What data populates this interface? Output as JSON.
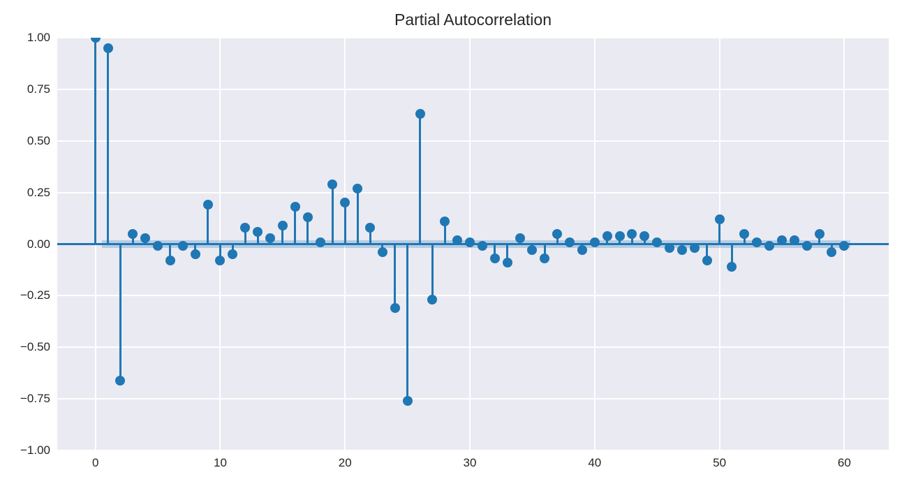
{
  "title": "Partial Autocorrelation",
  "colors": {
    "accent": "#1f77b4",
    "axes_background": "#eaeaf2",
    "gridline": "#ffffff",
    "text": "#262626",
    "confidence_band": "rgba(31,119,180,0.25)"
  },
  "chart_data": {
    "type": "stem",
    "title": "Partial Autocorrelation",
    "xlabel": "",
    "ylabel": "",
    "grid": true,
    "legend": false,
    "xlim": [
      -3.06,
      63.56
    ],
    "ylim": [
      -1.0,
      1.0
    ],
    "confidence_band": {
      "half_width": 0.017,
      "x_start": 0.5,
      "x_end": 60.5
    },
    "xticks": [
      {
        "label": "0",
        "value": 0
      },
      {
        "label": "10",
        "value": 10
      },
      {
        "label": "20",
        "value": 20
      },
      {
        "label": "30",
        "value": 30
      },
      {
        "label": "40",
        "value": 40
      },
      {
        "label": "50",
        "value": 50
      },
      {
        "label": "60",
        "value": 60
      }
    ],
    "yticks": [
      {
        "label": "1.00",
        "value": 1.0
      },
      {
        "label": "0.75",
        "value": 0.75
      },
      {
        "label": "0.50",
        "value": 0.5
      },
      {
        "label": "0.25",
        "value": 0.25
      },
      {
        "label": "0.00",
        "value": 0.0
      },
      {
        "label": "−0.25",
        "value": -0.25
      },
      {
        "label": "−0.50",
        "value": -0.5
      },
      {
        "label": "−0.75",
        "value": -0.75
      },
      {
        "label": "−1.00",
        "value": -1.0
      }
    ],
    "x": [
      0,
      1,
      2,
      3,
      4,
      5,
      6,
      7,
      8,
      9,
      10,
      11,
      12,
      13,
      14,
      15,
      16,
      17,
      18,
      19,
      20,
      21,
      22,
      23,
      24,
      25,
      26,
      27,
      28,
      29,
      30,
      31,
      32,
      33,
      34,
      35,
      36,
      37,
      38,
      39,
      40,
      41,
      42,
      43,
      44,
      45,
      46,
      47,
      48,
      49,
      50,
      51,
      52,
      53,
      54,
      55,
      56,
      57,
      58,
      59,
      60
    ],
    "values": [
      1.0,
      0.95,
      -0.66,
      0.05,
      0.03,
      -0.01,
      -0.08,
      -0.01,
      -0.05,
      0.19,
      -0.08,
      -0.05,
      0.08,
      0.06,
      0.03,
      0.09,
      0.18,
      0.13,
      0.01,
      0.29,
      0.2,
      0.27,
      0.08,
      -0.04,
      -0.31,
      -0.76,
      0.63,
      -0.27,
      0.11,
      0.02,
      0.01,
      -0.01,
      -0.07,
      -0.09,
      0.03,
      -0.03,
      -0.07,
      0.05,
      0.01,
      -0.03,
      0.01,
      0.04,
      0.04,
      0.05,
      0.04,
      0.01,
      -0.02,
      -0.03,
      -0.02,
      -0.08,
      0.12,
      -0.11,
      0.05,
      0.01,
      -0.01,
      0.02,
      0.02,
      -0.01,
      0.05,
      -0.04,
      -0.01
    ]
  }
}
